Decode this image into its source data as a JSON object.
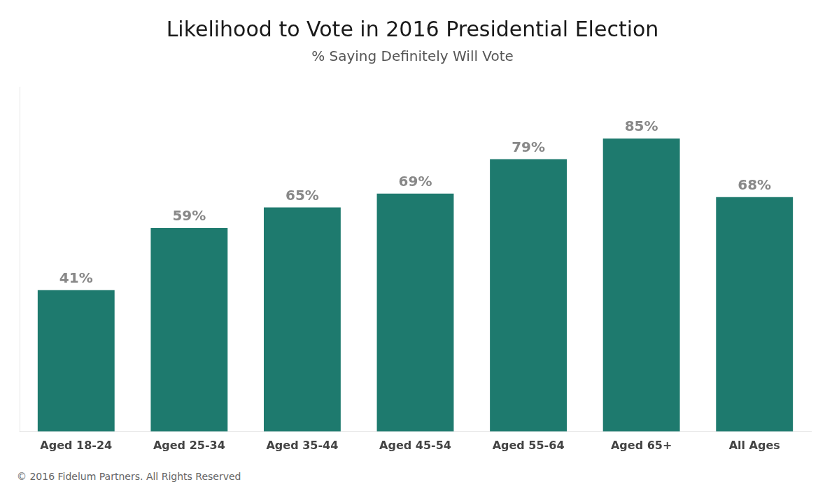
{
  "chart_data": {
    "type": "bar",
    "title": "Likelihood to Vote in 2016 Presidential Election",
    "subtitle": "% Saying Definitely Will Vote",
    "categories": [
      "Aged 18-24",
      "Aged 25-34",
      "Aged 35-44",
      "Aged 45-54",
      "Aged 55-64",
      "Aged 65+",
      "All Ages"
    ],
    "values": [
      41,
      59,
      65,
      69,
      79,
      85,
      68
    ],
    "value_labels": [
      "41%",
      "59%",
      "65%",
      "69%",
      "79%",
      "85%",
      "68%"
    ],
    "data_labels": true,
    "color": "#1e7a6e",
    "ylim": [
      0,
      100
    ],
    "grid": false,
    "tick_labels": "x",
    "annotations": [
      "© 2016 Fidelum Partners. All Rights Reserved"
    ]
  }
}
